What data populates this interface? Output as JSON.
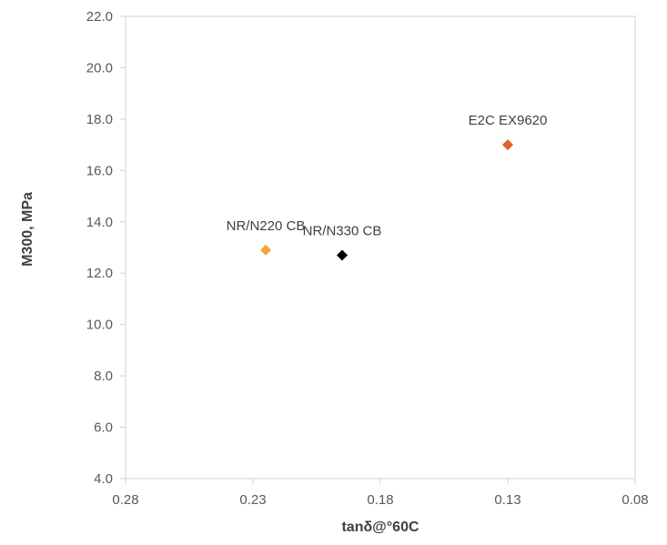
{
  "chart_data": {
    "type": "scatter",
    "title": "",
    "xlabel": "tanδ@°60C",
    "ylabel": "M300, MPa",
    "xlim": [
      0.28,
      0.08
    ],
    "x_reversed": true,
    "ylim": [
      4.0,
      22.0
    ],
    "x_ticks": [
      "0.28",
      "0.23",
      "0.18",
      "0.13",
      "0.08"
    ],
    "y_ticks": [
      "4.0",
      "6.0",
      "8.0",
      "10.0",
      "12.0",
      "14.0",
      "16.0",
      "18.0",
      "20.0",
      "22.0"
    ],
    "grid": false,
    "legend": "none",
    "marker": "diamond",
    "points": [
      {
        "label": "NR/N220 CB",
        "x": 0.225,
        "y": 12.9,
        "color": "#F4A23C"
      },
      {
        "label": "NR/N330 CB",
        "x": 0.195,
        "y": 12.7,
        "color": "#000000"
      },
      {
        "label": "E2C EX9620",
        "x": 0.13,
        "y": 17.0,
        "color": "#E2622A"
      }
    ]
  }
}
